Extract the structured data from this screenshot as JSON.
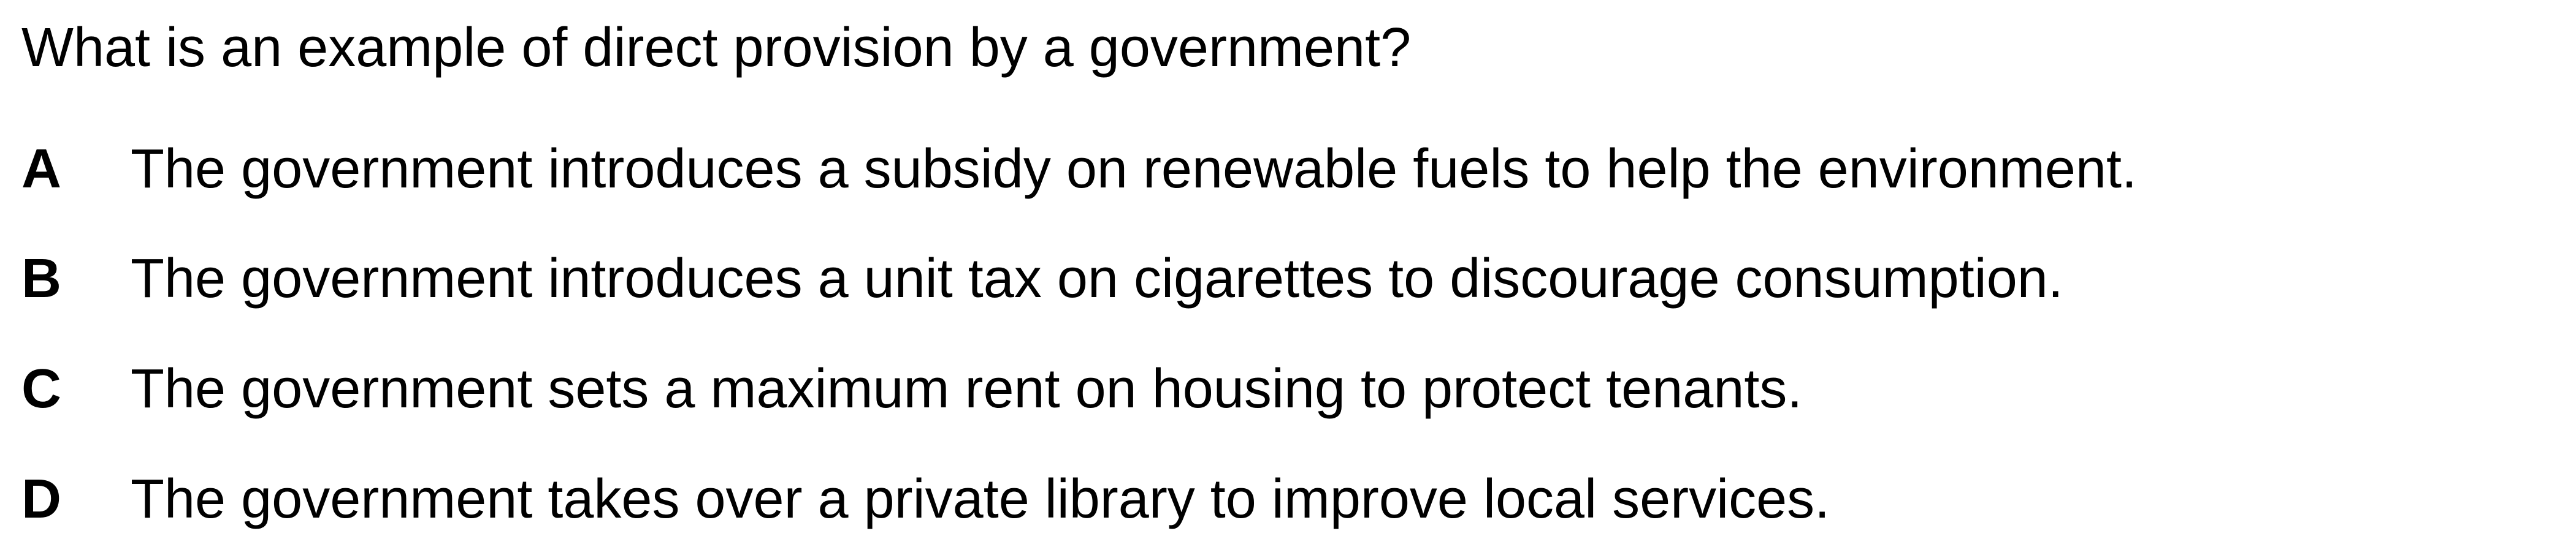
{
  "question": {
    "stem": "What is an example of direct provision by a government?",
    "options": [
      {
        "letter": "A",
        "text": "The government introduces a subsidy on renewable fuels to help the environment."
      },
      {
        "letter": "B",
        "text": "The government introduces a unit tax on cigarettes to discourage consumption."
      },
      {
        "letter": "C",
        "text": "The government sets a maximum rent on housing to protect tenants."
      },
      {
        "letter": "D",
        "text": "The government takes over a private library to improve local services."
      }
    ]
  }
}
